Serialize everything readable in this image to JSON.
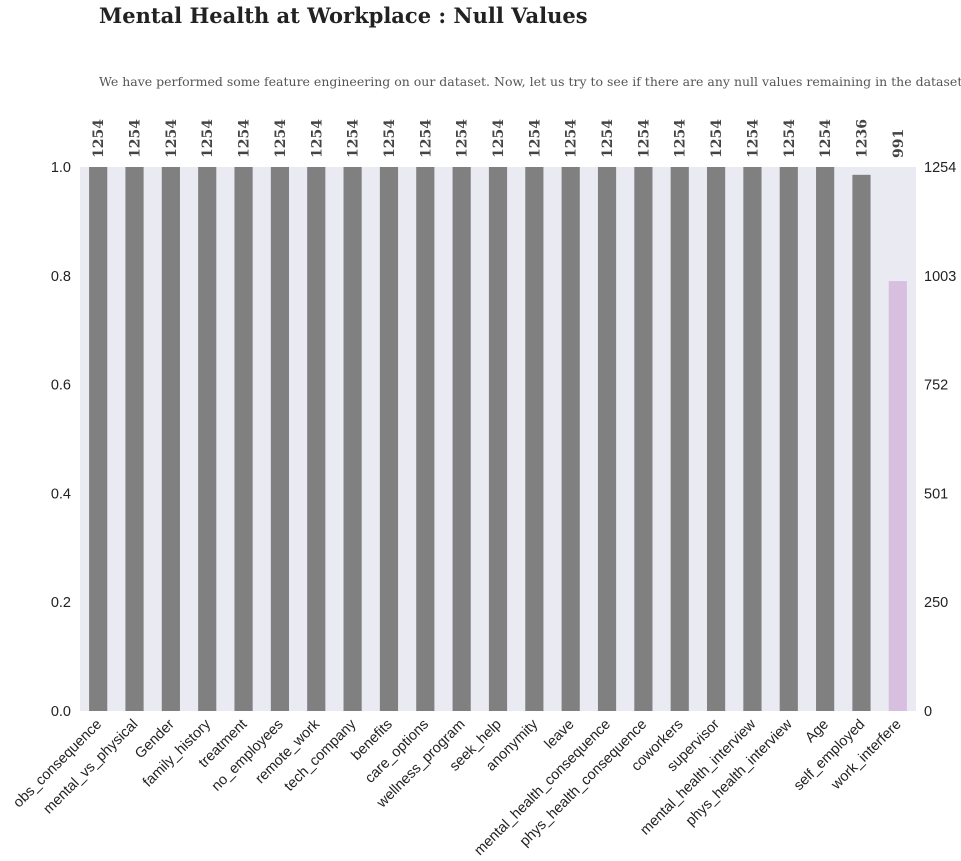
{
  "title": "Mental Health at Workplace : Null Values",
  "subtitle": "We have performed some feature engineering on our dataset. Now, let us try to see if there are any null values remaining in the dataset.",
  "colors": {
    "plot_background": "#eaeaf2",
    "bar": "#808080",
    "highlight_bar": "#d8bfe0",
    "grid": "#ffffff"
  },
  "chart_data": {
    "type": "bar",
    "title": "Mental Health at Workplace : Null Values",
    "subtitle": "We have performed some feature engineering on our dataset. Now, let us try to see if there are any null values remaining in the dataset.",
    "categories": [
      "obs_consequence",
      "mental_vs_physical",
      "Gender",
      "family_history",
      "treatment",
      "no_employees",
      "remote_work",
      "tech_company",
      "benefits",
      "care_options",
      "wellness_program",
      "seek_help",
      "anonymity",
      "leave",
      "mental_health_consequence",
      "phys_health_consequence",
      "coworkers",
      "supervisor",
      "mental_health_interview",
      "phys_health_interview",
      "Age",
      "self_employed",
      "work_interfere"
    ],
    "counts": [
      1254,
      1254,
      1254,
      1254,
      1254,
      1254,
      1254,
      1254,
      1254,
      1254,
      1254,
      1254,
      1254,
      1254,
      1254,
      1254,
      1254,
      1254,
      1254,
      1254,
      1254,
      1236,
      991
    ],
    "total": 1254,
    "highlight": [
      "work_interfere"
    ],
    "ylim": [
      0,
      1
    ],
    "left_ticks": [
      "0.0",
      "0.2",
      "0.4",
      "0.6",
      "0.8",
      "1.0"
    ],
    "right_ticks": [
      "0",
      "250",
      "501",
      "752",
      "1003",
      "1254"
    ],
    "xlabel": "",
    "ylabel": "",
    "grid": false
  }
}
